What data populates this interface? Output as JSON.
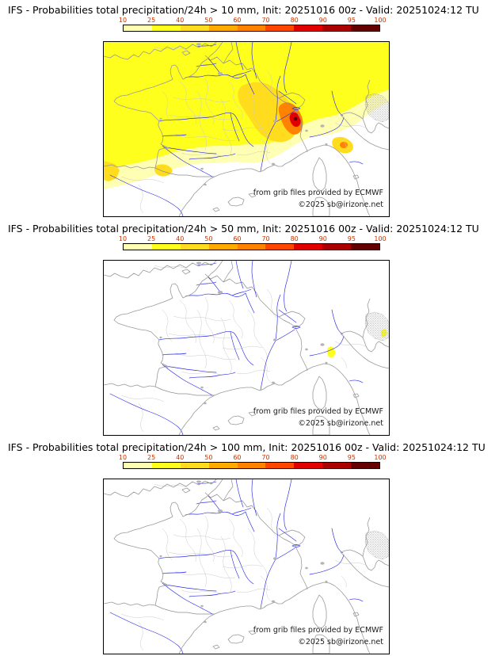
{
  "panels": [
    {
      "id": "gt10",
      "title": "IFS - Probabilities total precipitation/24h > 10 mm, Init: 20251016 00z - Valid: 20251024:12 TU"
    },
    {
      "id": "gt50",
      "title": "IFS - Probabilities total precipitation/24h > 50 mm, Init: 20251016 00z - Valid: 20251024:12 TU"
    },
    {
      "id": "gt100",
      "title": "IFS - Probabilities total precipitation/24h > 100 mm, Init: 20251016 00z - Valid: 20251024:12 TU"
    }
  ],
  "scale": {
    "unit": "%",
    "values": [
      "10",
      "25",
      "40",
      "50",
      "60",
      "70",
      "80",
      "90",
      "95",
      "100"
    ],
    "colors": [
      "#ffffb4",
      "#ffff1e",
      "#ffdc1e",
      "#ffaa00",
      "#ff8200",
      "#ff4600",
      "#e10000",
      "#aa0000",
      "#640000"
    ],
    "label_color": "#cc3300"
  },
  "attribution": {
    "line1": "from grib files provided by ECMWF",
    "line2": "©2025 sb@irizone.net"
  },
  "map_style": {
    "river_color": "#2a2ae6",
    "coast_color": "#9a9a9a",
    "admin_color": "#cccccc"
  }
}
